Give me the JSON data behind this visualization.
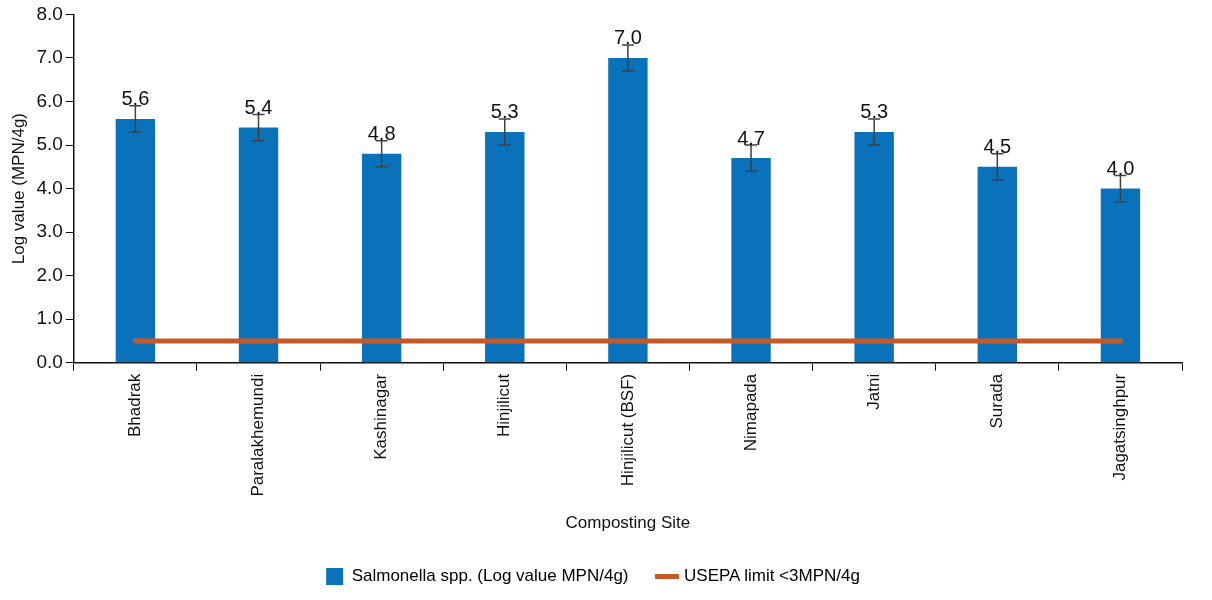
{
  "chart_data": {
    "type": "bar",
    "xlabel": "Composting Site",
    "ylabel": "Log value (MPN/4g)",
    "categories": [
      "Bhadrak",
      "Paralakhemundi",
      "Kashinagar",
      "Hinjilicut",
      "Hinjilicut (BSF)",
      "Nimapada",
      "Jatni",
      "Surada",
      "Jagatsinghpur"
    ],
    "series": [
      {
        "name": "Salmonella spp. (Log value MPN/4g)",
        "color": "#0a72ba",
        "values": [
          5.6,
          5.4,
          4.8,
          5.3,
          7.0,
          4.7,
          5.3,
          4.5,
          4.0
        ],
        "value_labels": [
          "5.6",
          "5.4",
          "4.8",
          "5.3",
          "7.0",
          "4.7",
          "5.3",
          "4.5",
          "4.0"
        ],
        "errors": [
          0.3,
          0.3,
          0.3,
          0.3,
          0.3,
          0.3,
          0.3,
          0.3,
          0.3
        ]
      },
      {
        "name": "USEPA limit <3MPN/4g",
        "type": "line",
        "color": "#c55a28",
        "values": [
          0.5,
          0.5,
          0.5,
          0.5,
          0.5,
          0.5,
          0.5,
          0.5,
          0.5
        ]
      }
    ],
    "ylim": [
      0,
      8
    ],
    "yticks": [
      {
        "value": 0,
        "label": "0.0"
      },
      {
        "value": 1,
        "label": "1.0"
      },
      {
        "value": 2,
        "label": "2.0"
      },
      {
        "value": 3,
        "label": "3.0"
      },
      {
        "value": 4,
        "label": "4.0"
      },
      {
        "value": 5,
        "label": "5.0"
      },
      {
        "value": 6,
        "label": "6.0"
      },
      {
        "value": 7,
        "label": "7.0"
      },
      {
        "value": 8,
        "label": "8.0"
      }
    ],
    "grid": false,
    "legend": "bottom"
  }
}
